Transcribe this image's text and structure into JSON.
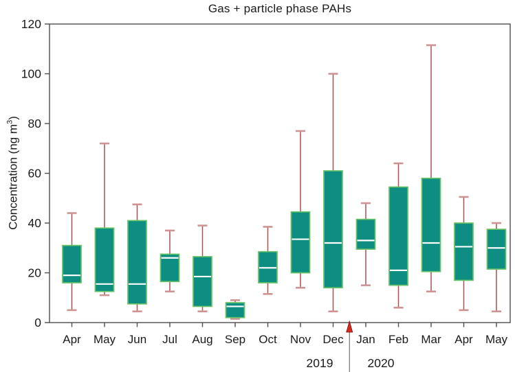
{
  "chart_data": {
    "type": "boxplot",
    "title": "Gas + particle phase PAHs",
    "ylabel": {
      "pre": "Concentration (ng m",
      "sup": "3",
      "post": ")"
    },
    "ylim": [
      0,
      120
    ],
    "yticks": [
      0,
      20,
      40,
      60,
      80,
      100,
      120
    ],
    "categories": [
      "Apr",
      "May",
      "Jun",
      "Jul",
      "Aug",
      "Sep",
      "Oct",
      "Nov",
      "Dec",
      "Jan",
      "Feb",
      "Mar",
      "Apr",
      "May"
    ],
    "years": {
      "left": "2019",
      "right": "2020"
    },
    "year_divider_between": [
      8,
      9
    ],
    "legend": "none",
    "grid": false,
    "boxes": [
      {
        "month": "Apr",
        "year": "2019",
        "whisker_low": 5,
        "q1": 16,
        "median": 19,
        "q3": 31,
        "whisker_high": 44
      },
      {
        "month": "May",
        "year": "2019",
        "whisker_low": 11,
        "q1": 12.5,
        "median": 15.5,
        "q3": 38,
        "whisker_high": 72
      },
      {
        "month": "Jun",
        "year": "2019",
        "whisker_low": 4.5,
        "q1": 7.5,
        "median": 15.5,
        "q3": 41,
        "whisker_high": 47.5
      },
      {
        "month": "Jul",
        "year": "2019",
        "whisker_low": 12.5,
        "q1": 16.5,
        "median": 26,
        "q3": 27.5,
        "whisker_high": 37
      },
      {
        "month": "Aug",
        "year": "2019",
        "whisker_low": 4.5,
        "q1": 6.5,
        "median": 18.5,
        "q3": 26.5,
        "whisker_high": 39
      },
      {
        "month": "Sep",
        "year": "2019",
        "whisker_low": 1.5,
        "q1": 2,
        "median": 6.5,
        "q3": 8,
        "whisker_high": 9
      },
      {
        "month": "Oct",
        "year": "2019",
        "whisker_low": 11.5,
        "q1": 16,
        "median": 22,
        "q3": 28.5,
        "whisker_high": 38.5
      },
      {
        "month": "Nov",
        "year": "2019",
        "whisker_low": 14,
        "q1": 20,
        "median": 33.5,
        "q3": 44.5,
        "whisker_high": 77
      },
      {
        "month": "Dec",
        "year": "2019",
        "whisker_low": 4.5,
        "q1": 14,
        "median": 32,
        "q3": 61,
        "whisker_high": 100
      },
      {
        "month": "Jan",
        "year": "2020",
        "whisker_low": 15,
        "q1": 29.5,
        "median": 33,
        "q3": 41.5,
        "whisker_high": 48
      },
      {
        "month": "Feb",
        "year": "2020",
        "whisker_low": 6,
        "q1": 15,
        "median": 21,
        "q3": 54.5,
        "whisker_high": 64
      },
      {
        "month": "Mar",
        "year": "2020",
        "whisker_low": 12.5,
        "q1": 20.5,
        "median": 32,
        "q3": 58,
        "whisker_high": 111.5
      },
      {
        "month": "Apr",
        "year": "2020",
        "whisker_low": 5,
        "q1": 17,
        "median": 30.5,
        "q3": 40,
        "whisker_high": 50.5
      },
      {
        "month": "May",
        "year": "2020",
        "whisker_low": 4.5,
        "q1": 21.5,
        "median": 30,
        "q3": 37.5,
        "whisker_high": 40
      }
    ],
    "colors": {
      "box_fill": "#0e8d82",
      "box_border": "#66c266",
      "median": "#ffffff",
      "whisker_line": "#a85050",
      "whisker_cap": "#d09393",
      "axis": "#4d4d4d",
      "arrow": "#d42a1e",
      "divider_line": "#666666",
      "text": "#1a1a1a"
    }
  }
}
